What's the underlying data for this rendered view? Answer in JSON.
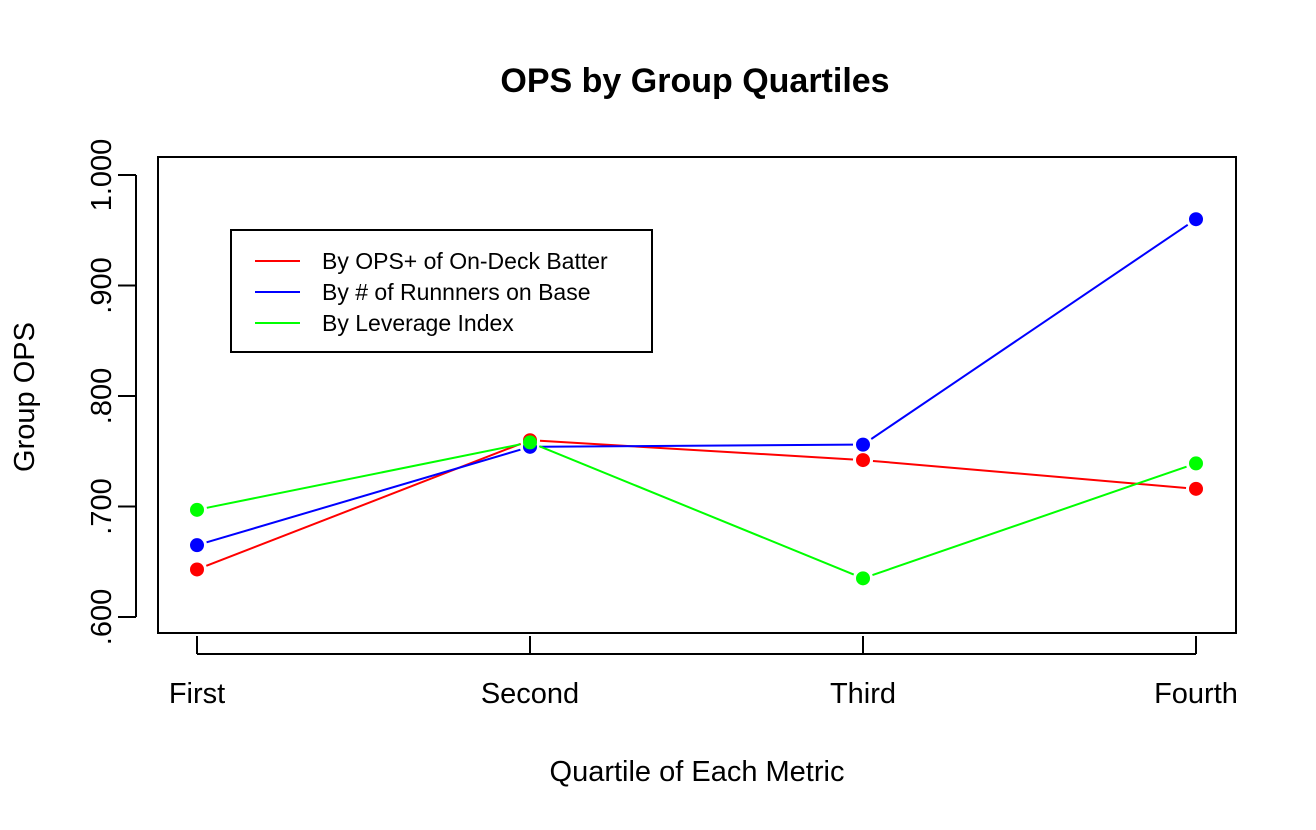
{
  "chart_data": {
    "type": "line",
    "title": "OPS by Group Quartiles",
    "xlabel": "Quartile of Each Metric",
    "ylabel": "Group OPS",
    "categories": [
      "First",
      "Second",
      "Third",
      "Fourth"
    ],
    "y_ticks": [
      0.6,
      0.7,
      0.8,
      0.9,
      1.0
    ],
    "y_tick_labels": [
      ".600",
      ".700",
      ".800",
      ".900",
      "1.000"
    ],
    "ylim": [
      0.585,
      1.016
    ],
    "grid": false,
    "legend_position": "top-left",
    "series": [
      {
        "name": "By OPS+ of On-Deck Batter",
        "color": "#ff0000",
        "values": [
          0.643,
          0.76,
          0.742,
          0.716
        ]
      },
      {
        "name": "By # of Runnners on Base",
        "color": "#0000ff",
        "values": [
          0.665,
          0.754,
          0.756,
          0.96
        ]
      },
      {
        "name": "By Leverage Index",
        "color": "#00ff00",
        "values": [
          0.697,
          0.758,
          0.635,
          0.739
        ]
      }
    ]
  }
}
